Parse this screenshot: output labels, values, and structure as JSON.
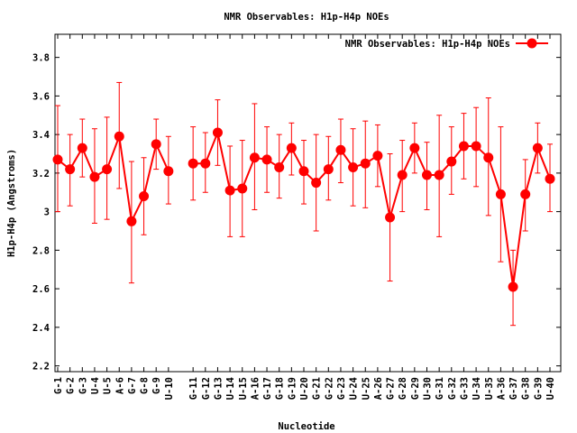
{
  "colors": {
    "series": "#ff0000",
    "axis": "#000000",
    "background": "#ffffff"
  },
  "chart_data": {
    "type": "line",
    "title": "NMR Observables: H1p-H4p NOEs",
    "xlabel": "Nucleotide",
    "ylabel": "H1p-H4p (Angstroms)",
    "ylim": [
      2.17,
      3.92
    ],
    "yticks": [
      "2.2",
      "2.4",
      "2.6",
      "2.8",
      "3",
      "3.2",
      "3.4",
      "3.6",
      "3.8"
    ],
    "legend": {
      "position": "top-right",
      "label": "NMR Observables: H1p-H4p NOEs"
    },
    "grid": false,
    "categories": [
      "G-1",
      "G-2",
      "G-3",
      "U-4",
      "U-5",
      "A-6",
      "G-7",
      "G-8",
      "G-9",
      "U-10",
      "G-11",
      "G-12",
      "G-13",
      "U-14",
      "U-15",
      "A-16",
      "G-17",
      "G-18",
      "G-19",
      "U-20",
      "G-21",
      "G-22",
      "G-23",
      "U-24",
      "U-25",
      "A-26",
      "G-27",
      "G-28",
      "G-29",
      "U-30",
      "G-31",
      "G-32",
      "G-33",
      "U-34",
      "U-35",
      "A-36",
      "G-37",
      "G-38",
      "G-39",
      "U-40"
    ],
    "series": [
      {
        "name": "NMR Observables: H1p-H4p NOEs",
        "values": [
          3.27,
          3.22,
          3.33,
          3.18,
          3.22,
          3.39,
          2.95,
          3.08,
          3.35,
          3.21,
          3.25,
          3.25,
          3.41,
          3.11,
          3.12,
          3.28,
          3.27,
          3.23,
          3.33,
          3.21,
          3.15,
          3.22,
          3.32,
          3.23,
          3.25,
          3.29,
          2.97,
          3.19,
          3.33,
          3.19,
          3.19,
          3.26,
          3.34,
          3.34,
          3.28,
          3.09,
          2.61,
          3.09,
          3.33,
          3.17
        ],
        "err_low": [
          3.0,
          3.03,
          3.18,
          2.94,
          2.96,
          3.12,
          2.63,
          2.88,
          3.22,
          3.04,
          3.06,
          3.1,
          3.24,
          2.87,
          2.87,
          3.01,
          3.1,
          3.07,
          3.19,
          3.04,
          2.9,
          3.06,
          3.15,
          3.03,
          3.02,
          3.13,
          2.64,
          3.0,
          3.2,
          3.01,
          2.87,
          3.09,
          3.17,
          3.13,
          2.98,
          2.74,
          2.41,
          2.9,
          3.2,
          3.0
        ],
        "err_high": [
          3.55,
          3.4,
          3.48,
          3.43,
          3.49,
          3.67,
          3.26,
          3.28,
          3.48,
          3.39,
          3.44,
          3.41,
          3.58,
          3.34,
          3.37,
          3.56,
          3.44,
          3.4,
          3.46,
          3.37,
          3.4,
          3.39,
          3.48,
          3.43,
          3.47,
          3.45,
          3.3,
          3.37,
          3.46,
          3.36,
          3.5,
          3.44,
          3.51,
          3.54,
          3.59,
          3.44,
          2.8,
          3.27,
          3.46,
          3.35
        ]
      }
    ]
  }
}
